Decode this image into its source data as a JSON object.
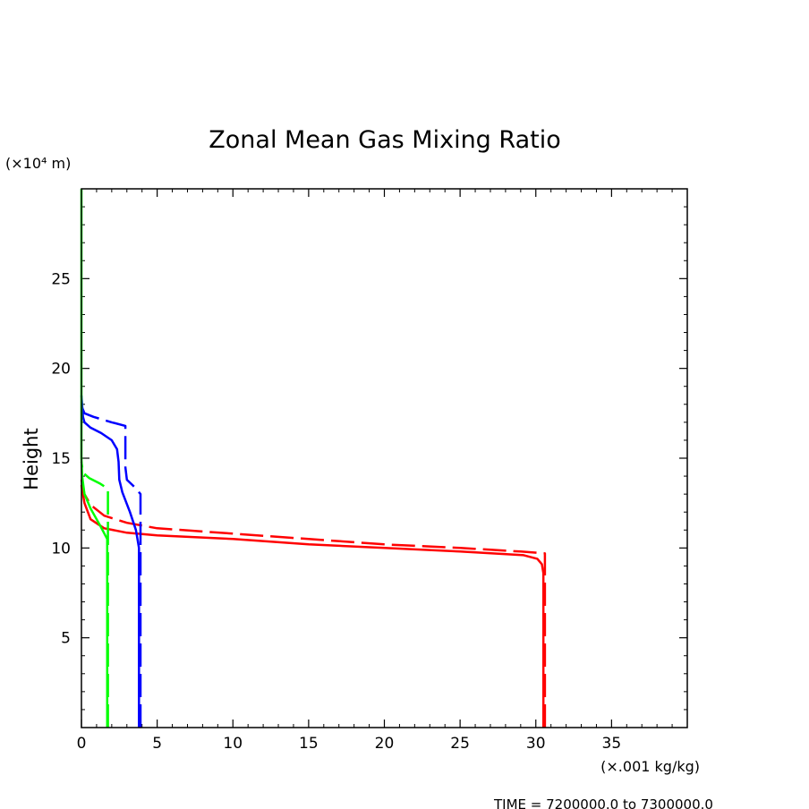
{
  "chart_data": {
    "type": "line",
    "title": "Zonal Mean Gas Mixing Ratio",
    "ylabel": "Height",
    "y_unit": "(×10⁴ m)",
    "x_unit": "(×.001 kg/kg)",
    "footer": "TIME = 7200000.0 to 7300000.0",
    "xlim": [
      0,
      40
    ],
    "ylim": [
      0,
      30
    ],
    "x_ticks": [
      0,
      5,
      10,
      15,
      20,
      25,
      30,
      35
    ],
    "y_ticks": [
      5,
      10,
      15,
      20,
      25
    ],
    "grid": false,
    "series": [
      {
        "color": "#ff0000",
        "style": "solid",
        "points": [
          [
            30.5,
            0
          ],
          [
            30.5,
            8.6
          ],
          [
            30.4,
            9.1
          ],
          [
            30.1,
            9.4
          ],
          [
            29.2,
            9.6
          ],
          [
            25,
            9.8
          ],
          [
            20,
            10.0
          ],
          [
            15,
            10.2
          ],
          [
            10,
            10.5
          ],
          [
            5,
            10.7
          ],
          [
            3,
            10.85
          ],
          [
            1.5,
            11.1
          ],
          [
            0.6,
            11.6
          ],
          [
            0.2,
            12.5
          ],
          [
            0,
            13.5
          ]
        ]
      },
      {
        "color": "#ff0000",
        "style": "dashed",
        "points": [
          [
            30.6,
            0
          ],
          [
            30.6,
            9.7
          ],
          [
            29,
            9.8
          ],
          [
            25,
            10.0
          ],
          [
            20,
            10.2
          ],
          [
            15,
            10.5
          ],
          [
            10,
            10.8
          ],
          [
            5,
            11.1
          ],
          [
            3,
            11.4
          ],
          [
            1.5,
            11.8
          ],
          [
            0.6,
            12.4
          ],
          [
            0.2,
            13.0
          ],
          [
            0,
            13.8
          ]
        ]
      },
      {
        "color": "#0000ff",
        "style": "solid",
        "points": [
          [
            3.8,
            0
          ],
          [
            3.8,
            10
          ],
          [
            3.6,
            11
          ],
          [
            3.2,
            12
          ],
          [
            2.7,
            13.1
          ],
          [
            2.5,
            13.8
          ],
          [
            2.45,
            14.8
          ],
          [
            2.35,
            15.5
          ],
          [
            2.0,
            16.0
          ],
          [
            1.3,
            16.4
          ],
          [
            0.6,
            16.7
          ],
          [
            0.2,
            17.0
          ],
          [
            0.1,
            17.3
          ],
          [
            0,
            18.5
          ]
        ]
      },
      {
        "color": "#0000ff",
        "style": "dashed",
        "points": [
          [
            3.9,
            0
          ],
          [
            3.9,
            13.0
          ],
          [
            3.5,
            13.4
          ],
          [
            3.0,
            13.8
          ],
          [
            2.9,
            14.5
          ],
          [
            2.9,
            15.5
          ],
          [
            2.9,
            16.8
          ],
          [
            2.0,
            17.0
          ],
          [
            0.8,
            17.3
          ],
          [
            0.2,
            17.5
          ],
          [
            0,
            17.9
          ]
        ]
      },
      {
        "color": "#00ff00",
        "style": "solid",
        "points": [
          [
            1.7,
            0
          ],
          [
            1.7,
            10.5
          ],
          [
            1.2,
            11.3
          ],
          [
            0.6,
            12.2
          ],
          [
            0.2,
            13.0
          ],
          [
            0.05,
            14.0
          ],
          [
            0,
            15.0
          ],
          [
            0,
            30
          ]
        ]
      },
      {
        "color": "#00ff00",
        "style": "dashed",
        "points": [
          [
            1.75,
            0
          ],
          [
            1.75,
            12.5
          ],
          [
            1.75,
            13.3
          ],
          [
            1.2,
            13.6
          ],
          [
            0.5,
            13.9
          ],
          [
            0.1,
            14.2
          ],
          [
            0,
            14.8
          ]
        ]
      }
    ]
  }
}
